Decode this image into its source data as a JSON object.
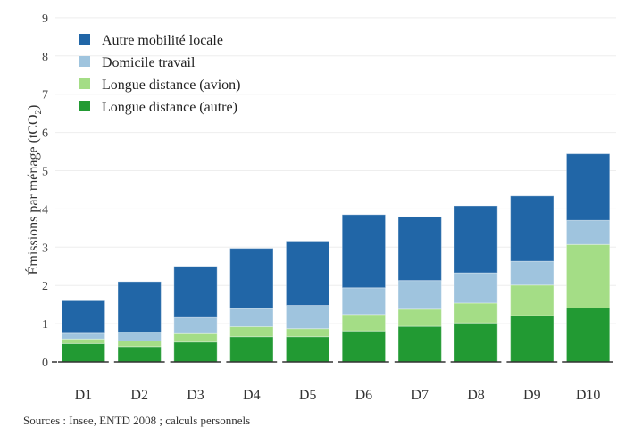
{
  "chart_data": {
    "type": "bar",
    "stacked": true,
    "title": "",
    "xlabel": "",
    "ylabel": "Émissions par ménage (tCO2)",
    "ylim": [
      0,
      9
    ],
    "yticks": [
      0,
      1,
      2,
      3,
      4,
      5,
      6,
      7,
      8,
      9
    ],
    "grid": true,
    "legend_position": "top-left",
    "categories": [
      "D1",
      "D2",
      "D3",
      "D4",
      "D5",
      "D6",
      "D7",
      "D8",
      "D9",
      "D10"
    ],
    "series": [
      {
        "name": "Longue distance (autre)",
        "color": "#229a33",
        "values": [
          0.48,
          0.4,
          0.52,
          0.66,
          0.66,
          0.81,
          0.93,
          1.02,
          1.21,
          1.41
        ]
      },
      {
        "name": "Longue distance (avion)",
        "color": "#a4dd86",
        "values": [
          0.12,
          0.15,
          0.22,
          0.26,
          0.21,
          0.43,
          0.45,
          0.52,
          0.8,
          1.66
        ]
      },
      {
        "name": "Domicile travail",
        "color": "#9fc4de",
        "values": [
          0.15,
          0.23,
          0.42,
          0.48,
          0.61,
          0.7,
          0.75,
          0.79,
          0.62,
          0.63
        ]
      },
      {
        "name": "Autre mobilité locale",
        "color": "#2166a7",
        "values": [
          0.85,
          1.32,
          1.34,
          1.57,
          1.68,
          1.91,
          1.67,
          1.75,
          1.71,
          1.74
        ]
      }
    ],
    "legend_order": [
      "Autre mobilité locale",
      "Domicile travail",
      "Longue distance (avion)",
      "Longue distance (autre)"
    ]
  },
  "ylabel_main": "Émissions par ménage (tCO",
  "ylabel_sub": "2",
  "ylabel_end": ")",
  "source": "Sources : Insee, ENTD 2008 ; calculs personnels"
}
